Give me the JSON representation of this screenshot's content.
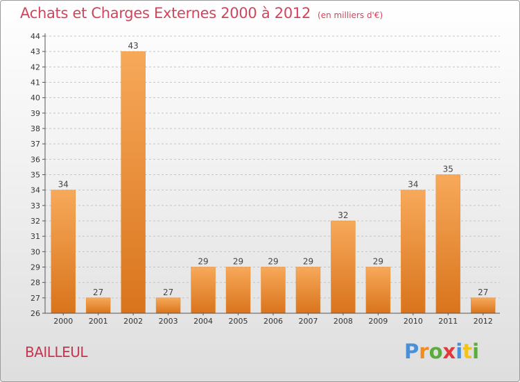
{
  "header": {
    "title": "Achats et Charges Externes 2000 à 2012",
    "subtitle": "(en milliers d'€)"
  },
  "place_label": "BAILLEUL",
  "brand": {
    "letters": [
      "P",
      "r",
      "o",
      "x",
      "i",
      "t",
      "i"
    ],
    "colors": [
      "#4a90d9",
      "#f28c1e",
      "#5aac3c",
      "#e03a3a",
      "#4a90d9",
      "#f2c21e",
      "#5aac3c"
    ]
  },
  "chart_data": {
    "type": "bar",
    "title": "Achats et Charges Externes 2000 à 2012",
    "subtitle": "(en milliers d'€)",
    "categories": [
      "2000",
      "2001",
      "2002",
      "2003",
      "2004",
      "2005",
      "2006",
      "2007",
      "2008",
      "2009",
      "2010",
      "2011",
      "2012"
    ],
    "values": [
      34,
      27,
      43,
      27,
      29,
      29,
      29,
      29,
      32,
      29,
      34,
      35,
      27
    ],
    "ylim": [
      26,
      44
    ],
    "yticks": [
      26,
      27,
      28,
      29,
      30,
      31,
      32,
      33,
      34,
      35,
      36,
      37,
      38,
      39,
      40,
      41,
      42,
      43,
      44
    ],
    "grid": true,
    "bar_color_top": "#f7a95a",
    "bar_color_bottom": "#d9741c",
    "label_color": "#444444"
  }
}
